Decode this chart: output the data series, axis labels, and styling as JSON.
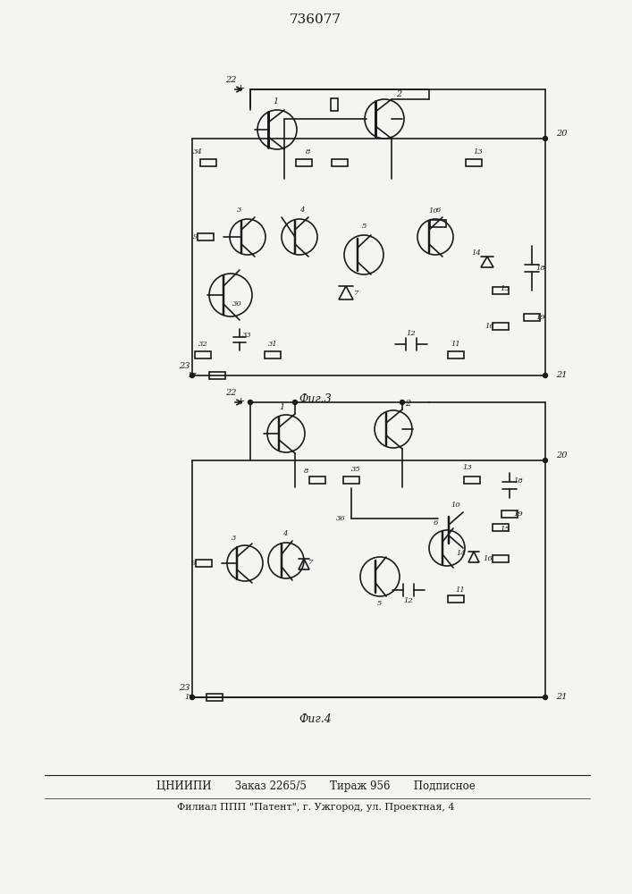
{
  "title": "736077",
  "fig1_caption": "Фиг.3",
  "fig2_caption": "Фиг.4",
  "footer_line1": "ЦНИИПИ       Заказ 2265/5       Тираж 956       Подписное",
  "footer_line2": "Филиал ППП \"Патент\", г. Ужгород, ул. Проектная, 4",
  "bg_color": "#f5f5f0",
  "line_color": "#1a1a1a",
  "line_width": 1.2
}
